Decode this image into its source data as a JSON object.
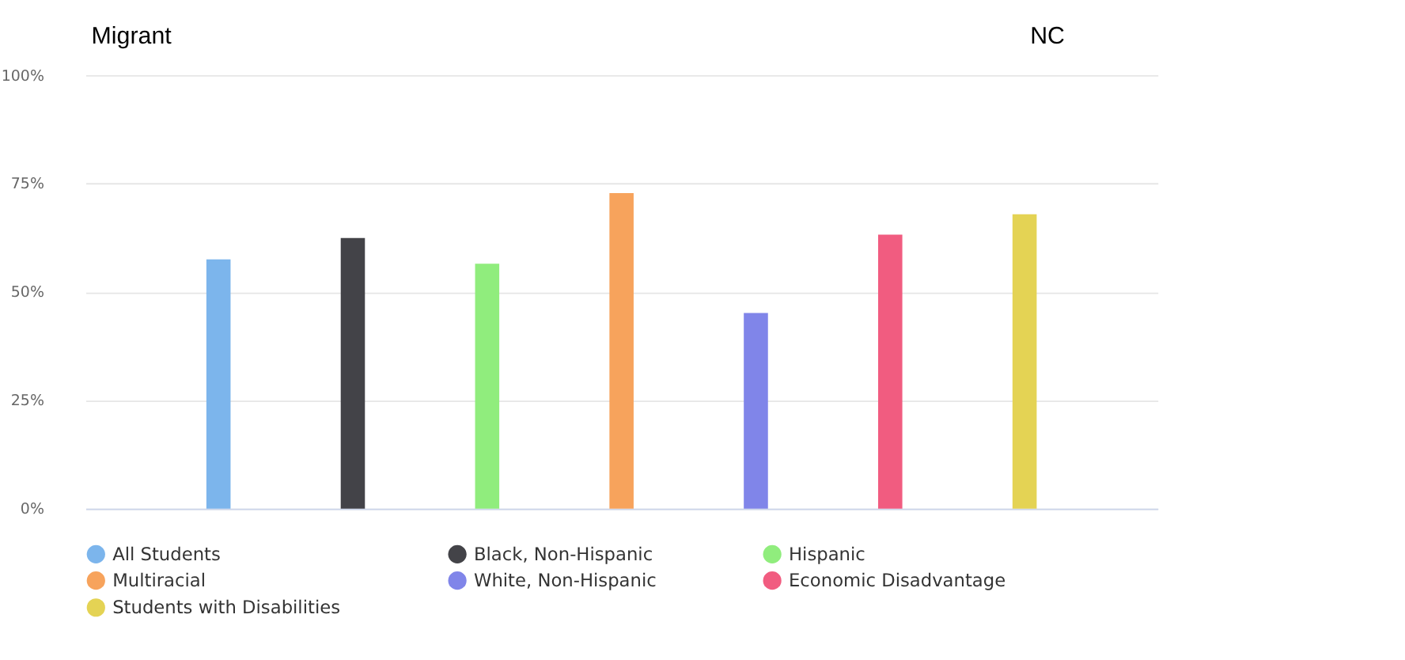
{
  "chart_data": {
    "type": "bar",
    "title": "Migrant",
    "subtitle": "NC",
    "categories": [
      null
    ],
    "series": [
      {
        "name": "All Students",
        "color": "#7cb5ec",
        "values": [
          57.5
        ]
      },
      {
        "name": "Black, Non-Hispanic",
        "color": "#434348",
        "values": [
          62.4
        ]
      },
      {
        "name": "Hispanic",
        "color": "#90ed7d",
        "values": [
          56.5
        ]
      },
      {
        "name": "Multiracial",
        "color": "#f7a35c",
        "values": [
          72.8
        ]
      },
      {
        "name": "White, Non-Hispanic",
        "color": "#8085e9",
        "values": [
          45.1
        ]
      },
      {
        "name": "Economic Disadvantage",
        "color": "#f15c80",
        "values": [
          63.2
        ]
      },
      {
        "name": "Students with Disabilities",
        "color": "#e4d354",
        "values": [
          67.9
        ]
      }
    ],
    "ylim": [
      0,
      100
    ],
    "yticks": [
      {
        "value": 0,
        "label": "0%"
      },
      {
        "value": 25,
        "label": "25%"
      },
      {
        "value": 50,
        "label": "50%"
      },
      {
        "value": 75,
        "label": "75%"
      },
      {
        "value": 100,
        "label": "100%"
      }
    ],
    "grid": "y",
    "legend": "bottom"
  }
}
